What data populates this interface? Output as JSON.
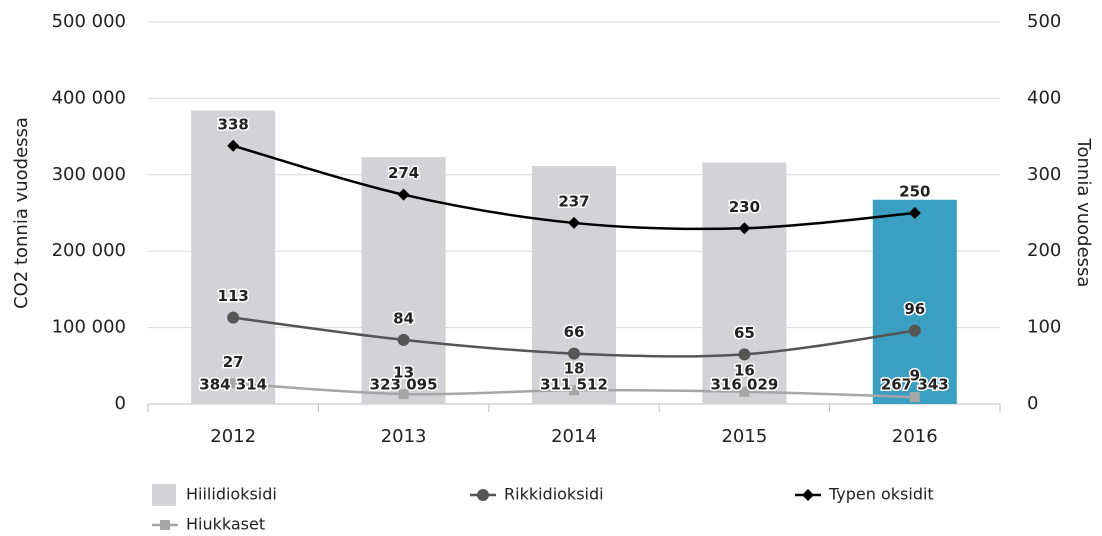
{
  "chart_data": {
    "type": "bar-line",
    "categories": [
      "2012",
      "2013",
      "2014",
      "2015",
      "2016"
    ],
    "ylabel": "CO2 tonnia vuodessa",
    "y2label": "Tonnia vuodessa",
    "ylim": [
      0,
      500000
    ],
    "yticks": [
      0,
      {
        "value": 100000,
        "label": "100 000"
      },
      {
        "value": 200000,
        "label": "200 000"
      },
      {
        "value": 300000,
        "label": "300 000"
      },
      {
        "value": 400000,
        "label": "400 000"
      },
      {
        "value": 500000,
        "label": "500 000"
      }
    ],
    "y2lim": [
      0,
      500
    ],
    "y2ticks": [
      0,
      100,
      200,
      300,
      400,
      500
    ],
    "grid": true,
    "legend": "bottom",
    "series": [
      {
        "name": "Hiilidioksidi",
        "type": "bar",
        "axis": "y",
        "colors": [
          "#d3d2d6",
          "#d3d2d6",
          "#d3d2d6",
          "#d3d2d6",
          "#3a9fc0"
        ],
        "values": [
          384314,
          323095,
          311512,
          316029,
          267343
        ],
        "value_labels": [
          "384 314",
          "323 095",
          "311 512",
          "316 029",
          "267 343"
        ]
      },
      {
        "name": "Rikkidioksidi",
        "type": "line",
        "axis": "y2",
        "color": "#555555",
        "marker": "circle",
        "values": [
          113,
          84,
          66,
          65,
          96
        ]
      },
      {
        "name": "Typen oksidit",
        "type": "line",
        "axis": "y2",
        "color": "#000000",
        "marker": "diamond",
        "values": [
          338,
          274,
          237,
          230,
          250
        ]
      },
      {
        "name": "Hiukkaset",
        "type": "line",
        "axis": "y2",
        "color": "#a6a6a6",
        "marker": "square",
        "values": [
          27,
          13,
          18,
          16,
          9
        ]
      }
    ]
  }
}
